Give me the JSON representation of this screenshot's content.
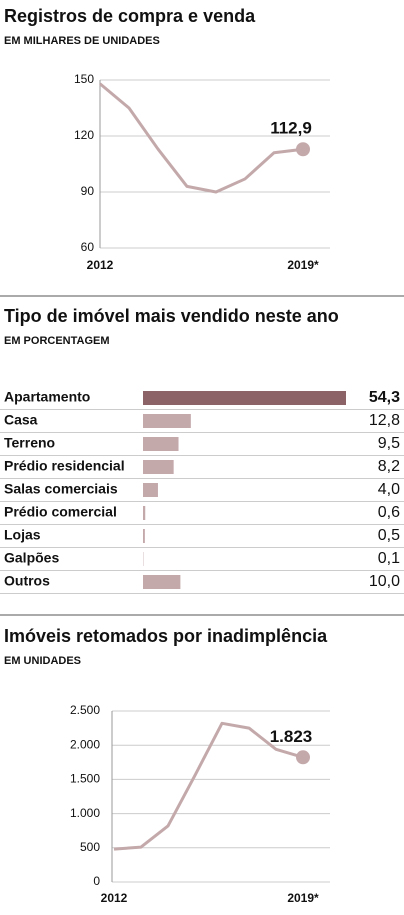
{
  "chart_data": [
    {
      "type": "line",
      "title": "Registros de compra e venda",
      "subtitle": "EM MILHARES DE UNIDADES",
      "categories": [
        "2012",
        null,
        null,
        null,
        null,
        null,
        null,
        "2019*"
      ],
      "values": [
        148,
        135,
        113,
        93,
        90,
        97,
        111,
        112.9
      ],
      "value_labels": [
        null,
        null,
        null,
        null,
        null,
        null,
        null,
        "112,9"
      ],
      "color": "#c4a9ab",
      "ylim": [
        60,
        150
      ],
      "yticks": [
        60,
        90,
        120,
        150
      ],
      "grid": true
    },
    {
      "type": "bar",
      "title": "Tipo de imóvel mais vendido neste ano",
      "subtitle": "EM PORCENTAGEM",
      "categories": [
        "Apartamento",
        "Casa",
        "Terreno",
        "Prédio residencial",
        "Salas comerciais",
        "Prédio comercial",
        "Lojas",
        "Galpões",
        "Outros"
      ],
      "values": [
        54.3,
        12.8,
        9.5,
        8.2,
        4.0,
        0.6,
        0.5,
        0.1,
        10.0
      ],
      "value_labels": [
        "54,3",
        "12,8",
        "9,5",
        "8,2",
        "4,0",
        "0,6",
        "0,5",
        "0,1",
        "10,0"
      ],
      "colors": [
        "#8c6468",
        "#c4a9ab",
        "#c4a9ab",
        "#c4a9ab",
        "#c4a9ab",
        "#c4a9ab",
        "#c4a9ab",
        "#c4a9ab",
        "#c4a9ab"
      ]
    },
    {
      "type": "line",
      "title": "Imóveis retomados por inadimplência",
      "subtitle": "EM UNIDADES",
      "categories": [
        "2012",
        null,
        null,
        null,
        null,
        null,
        null,
        "2019*"
      ],
      "values": [
        480,
        510,
        820,
        1560,
        2320,
        2250,
        1940,
        1823
      ],
      "value_labels": [
        null,
        null,
        null,
        null,
        null,
        null,
        null,
        "1.823"
      ],
      "color": "#c4a9ab",
      "ylim": [
        0,
        2500
      ],
      "yticks": [
        0,
        500,
        {
          "value": 1000,
          "label": "1.000"
        },
        {
          "value": 1500,
          "label": "1.500"
        },
        {
          "value": 2000,
          "label": "2.000"
        },
        {
          "value": 2500,
          "label": "2.500"
        }
      ],
      "grid": true
    }
  ]
}
